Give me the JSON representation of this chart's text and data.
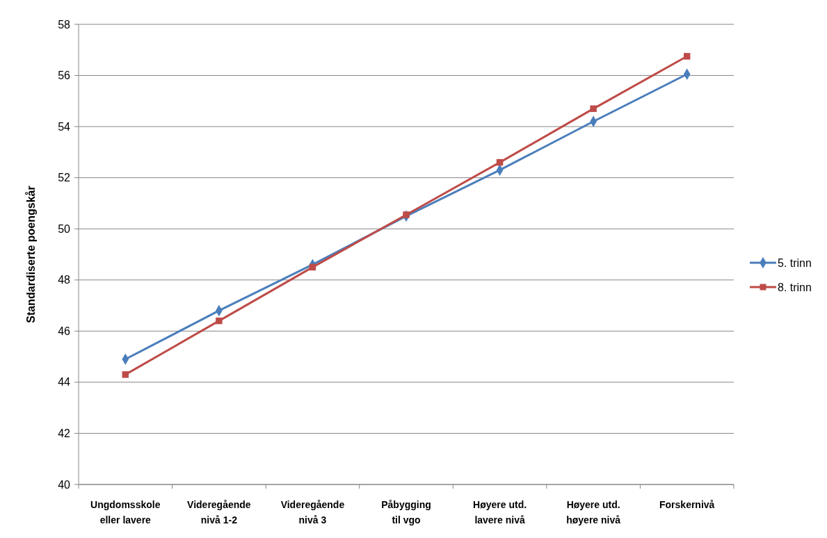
{
  "chart_data": {
    "type": "line",
    "ylabel": "Standardiserte poengskår",
    "categories": [
      "Ungdomsskole eller lavere",
      "Videregående nivå 1-2",
      "Videregående nivå 3",
      "Påbygging til vgo",
      "Høyere utd. lavere nivå",
      "Høyere utd. høyere nivå",
      "Forskernivå"
    ],
    "series": [
      {
        "name": "5. trinn",
        "color": "#4a7ebb",
        "marker": "diamond",
        "values": [
          44.9,
          46.8,
          48.6,
          50.5,
          52.3,
          54.2,
          56.05
        ]
      },
      {
        "name": "8. trinn",
        "color": "#be4b48",
        "marker": "square",
        "values": [
          44.3,
          46.4,
          48.5,
          50.55,
          52.6,
          54.7,
          56.75
        ]
      }
    ],
    "ylim": [
      40,
      58
    ],
    "yticks": [
      40,
      42,
      44,
      46,
      48,
      50,
      52,
      54,
      56,
      58
    ],
    "grid": "y",
    "legend": "right",
    "line_style": "solid"
  }
}
